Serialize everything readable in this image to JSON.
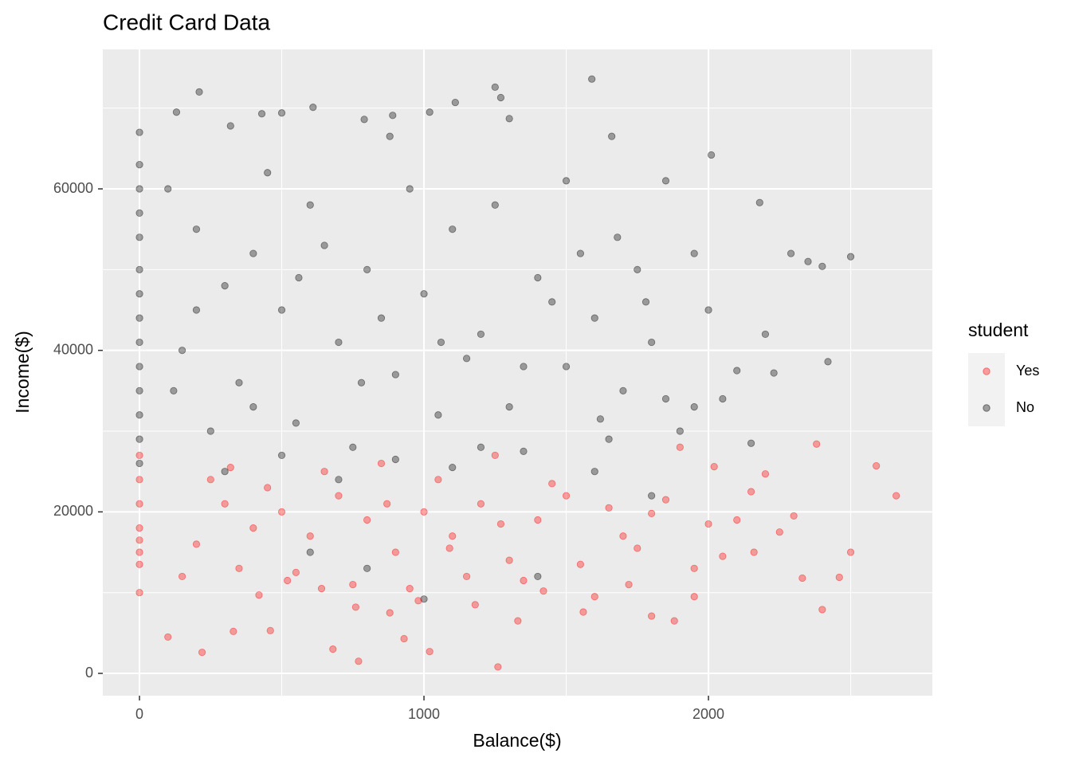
{
  "chart_data": {
    "type": "scatter",
    "title": "Credit Card Data",
    "x_label": "Balance($)",
    "y_label": "Income($)",
    "xlim": [
      -129,
      2787
    ],
    "ylim": [
      -2760,
      77270
    ],
    "xticks": [
      0,
      1000,
      2000
    ],
    "yticks": [
      0,
      20000,
      40000,
      60000
    ],
    "x_minor_gridlines": [
      500,
      1500,
      2500
    ],
    "y_minor_gridlines": [
      10000,
      30000,
      50000,
      70000
    ],
    "grid": true,
    "legend": "right",
    "legend_title": "student",
    "series": [
      {
        "name": "Yes",
        "color": "#ff0000",
        "x": [
          0,
          0,
          0,
          0,
          0,
          0,
          0,
          0,
          100,
          220,
          330,
          460,
          680,
          770,
          930,
          1020,
          1260,
          1560,
          1800,
          1880,
          2400,
          2460,
          2500,
          2590,
          2660,
          2330,
          2380,
          2200,
          2100,
          1950,
          1900,
          1700,
          1500,
          1400,
          1300,
          1200,
          1100,
          1000,
          900,
          800,
          700,
          600,
          500,
          400,
          300,
          200,
          150,
          250,
          350,
          450,
          550,
          650,
          750,
          850,
          950,
          1050,
          1150,
          1250,
          1350,
          1450,
          1550,
          1650,
          1750,
          1850,
          2000,
          2050,
          2150,
          2250,
          1600,
          1420,
          1180,
          980,
          880,
          760,
          640,
          520,
          420,
          320,
          1330,
          1270,
          870,
          1090,
          1720,
          1950,
          2020,
          1800,
          2300,
          2160
        ],
        "values": [
          21000,
          18000,
          15000,
          13500,
          24000,
          10000,
          27000,
          16500,
          4500,
          2600,
          5200,
          5300,
          3000,
          1500,
          4300,
          2700,
          800,
          7600,
          7100,
          6500,
          7900,
          11900,
          15000,
          25700,
          22000,
          11800,
          28400,
          24700,
          19000,
          13000,
          28000,
          17000,
          22000,
          19000,
          14000,
          21000,
          17000,
          20000,
          15000,
          19000,
          22000,
          17000,
          20000,
          18000,
          21000,
          16000,
          12000,
          24000,
          13000,
          23000,
          12500,
          25000,
          11000,
          26000,
          10500,
          24000,
          12000,
          27000,
          11500,
          23500,
          13500,
          20500,
          15500,
          21500,
          18500,
          14500,
          22500,
          17500,
          9500,
          10200,
          8500,
          9000,
          7500,
          8200,
          10500,
          11500,
          9700,
          25500,
          6500,
          18500,
          21000,
          15500,
          11000,
          9500,
          25600,
          19800,
          19500,
          15000
        ]
      },
      {
        "name": "No",
        "color": "#000000",
        "x": [
          0,
          0,
          0,
          0,
          0,
          0,
          0,
          0,
          0,
          0,
          0,
          0,
          0,
          0,
          130,
          210,
          320,
          430,
          500,
          610,
          790,
          890,
          1020,
          1110,
          1250,
          1300,
          1590,
          1660,
          1270,
          880,
          100,
          200,
          300,
          400,
          500,
          600,
          700,
          800,
          900,
          1000,
          1100,
          1200,
          1300,
          1400,
          1500,
          1600,
          1700,
          1800,
          1900,
          2000,
          2100,
          2200,
          150,
          250,
          350,
          450,
          550,
          650,
          750,
          850,
          950,
          1050,
          1150,
          1250,
          1350,
          1450,
          1550,
          1650,
          1750,
          1850,
          1950,
          2050,
          2150,
          2230,
          2290,
          2350,
          2400,
          2420,
          2500,
          2180,
          2010,
          1850,
          1500,
          1680,
          1100,
          900,
          700,
          500,
          300,
          1000,
          1400,
          600,
          800,
          1200,
          1600,
          1800,
          1950,
          400,
          200,
          120,
          1780,
          1620,
          1350,
          1060,
          780,
          560
        ],
        "values": [
          67000,
          63000,
          60000,
          57000,
          54000,
          50000,
          47000,
          44000,
          41000,
          38000,
          35000,
          32000,
          29000,
          26000,
          69500,
          72000,
          67800,
          69300,
          69400,
          70100,
          68600,
          69100,
          69500,
          70700,
          72600,
          68700,
          73600,
          66500,
          71300,
          66500,
          60000,
          55000,
          48000,
          52000,
          45000,
          58000,
          41000,
          50000,
          37000,
          47000,
          55000,
          42000,
          33000,
          49000,
          38000,
          44000,
          35000,
          41000,
          30000,
          45000,
          37500,
          42000,
          40000,
          30000,
          36000,
          62000,
          31000,
          53000,
          28000,
          44000,
          60000,
          32000,
          39000,
          58000,
          27500,
          46000,
          52000,
          29000,
          50000,
          34000,
          52000,
          34000,
          28500,
          37200,
          52000,
          51000,
          50400,
          38600,
          51600,
          58300,
          64200,
          61000,
          61000,
          54000,
          25500,
          26500,
          24000,
          27000,
          25000,
          9200,
          12000,
          15000,
          13000,
          28000,
          25000,
          22000,
          33000,
          33000,
          45000,
          35000,
          46000,
          31500,
          38000,
          41000,
          36000,
          49000
        ]
      }
    ]
  }
}
